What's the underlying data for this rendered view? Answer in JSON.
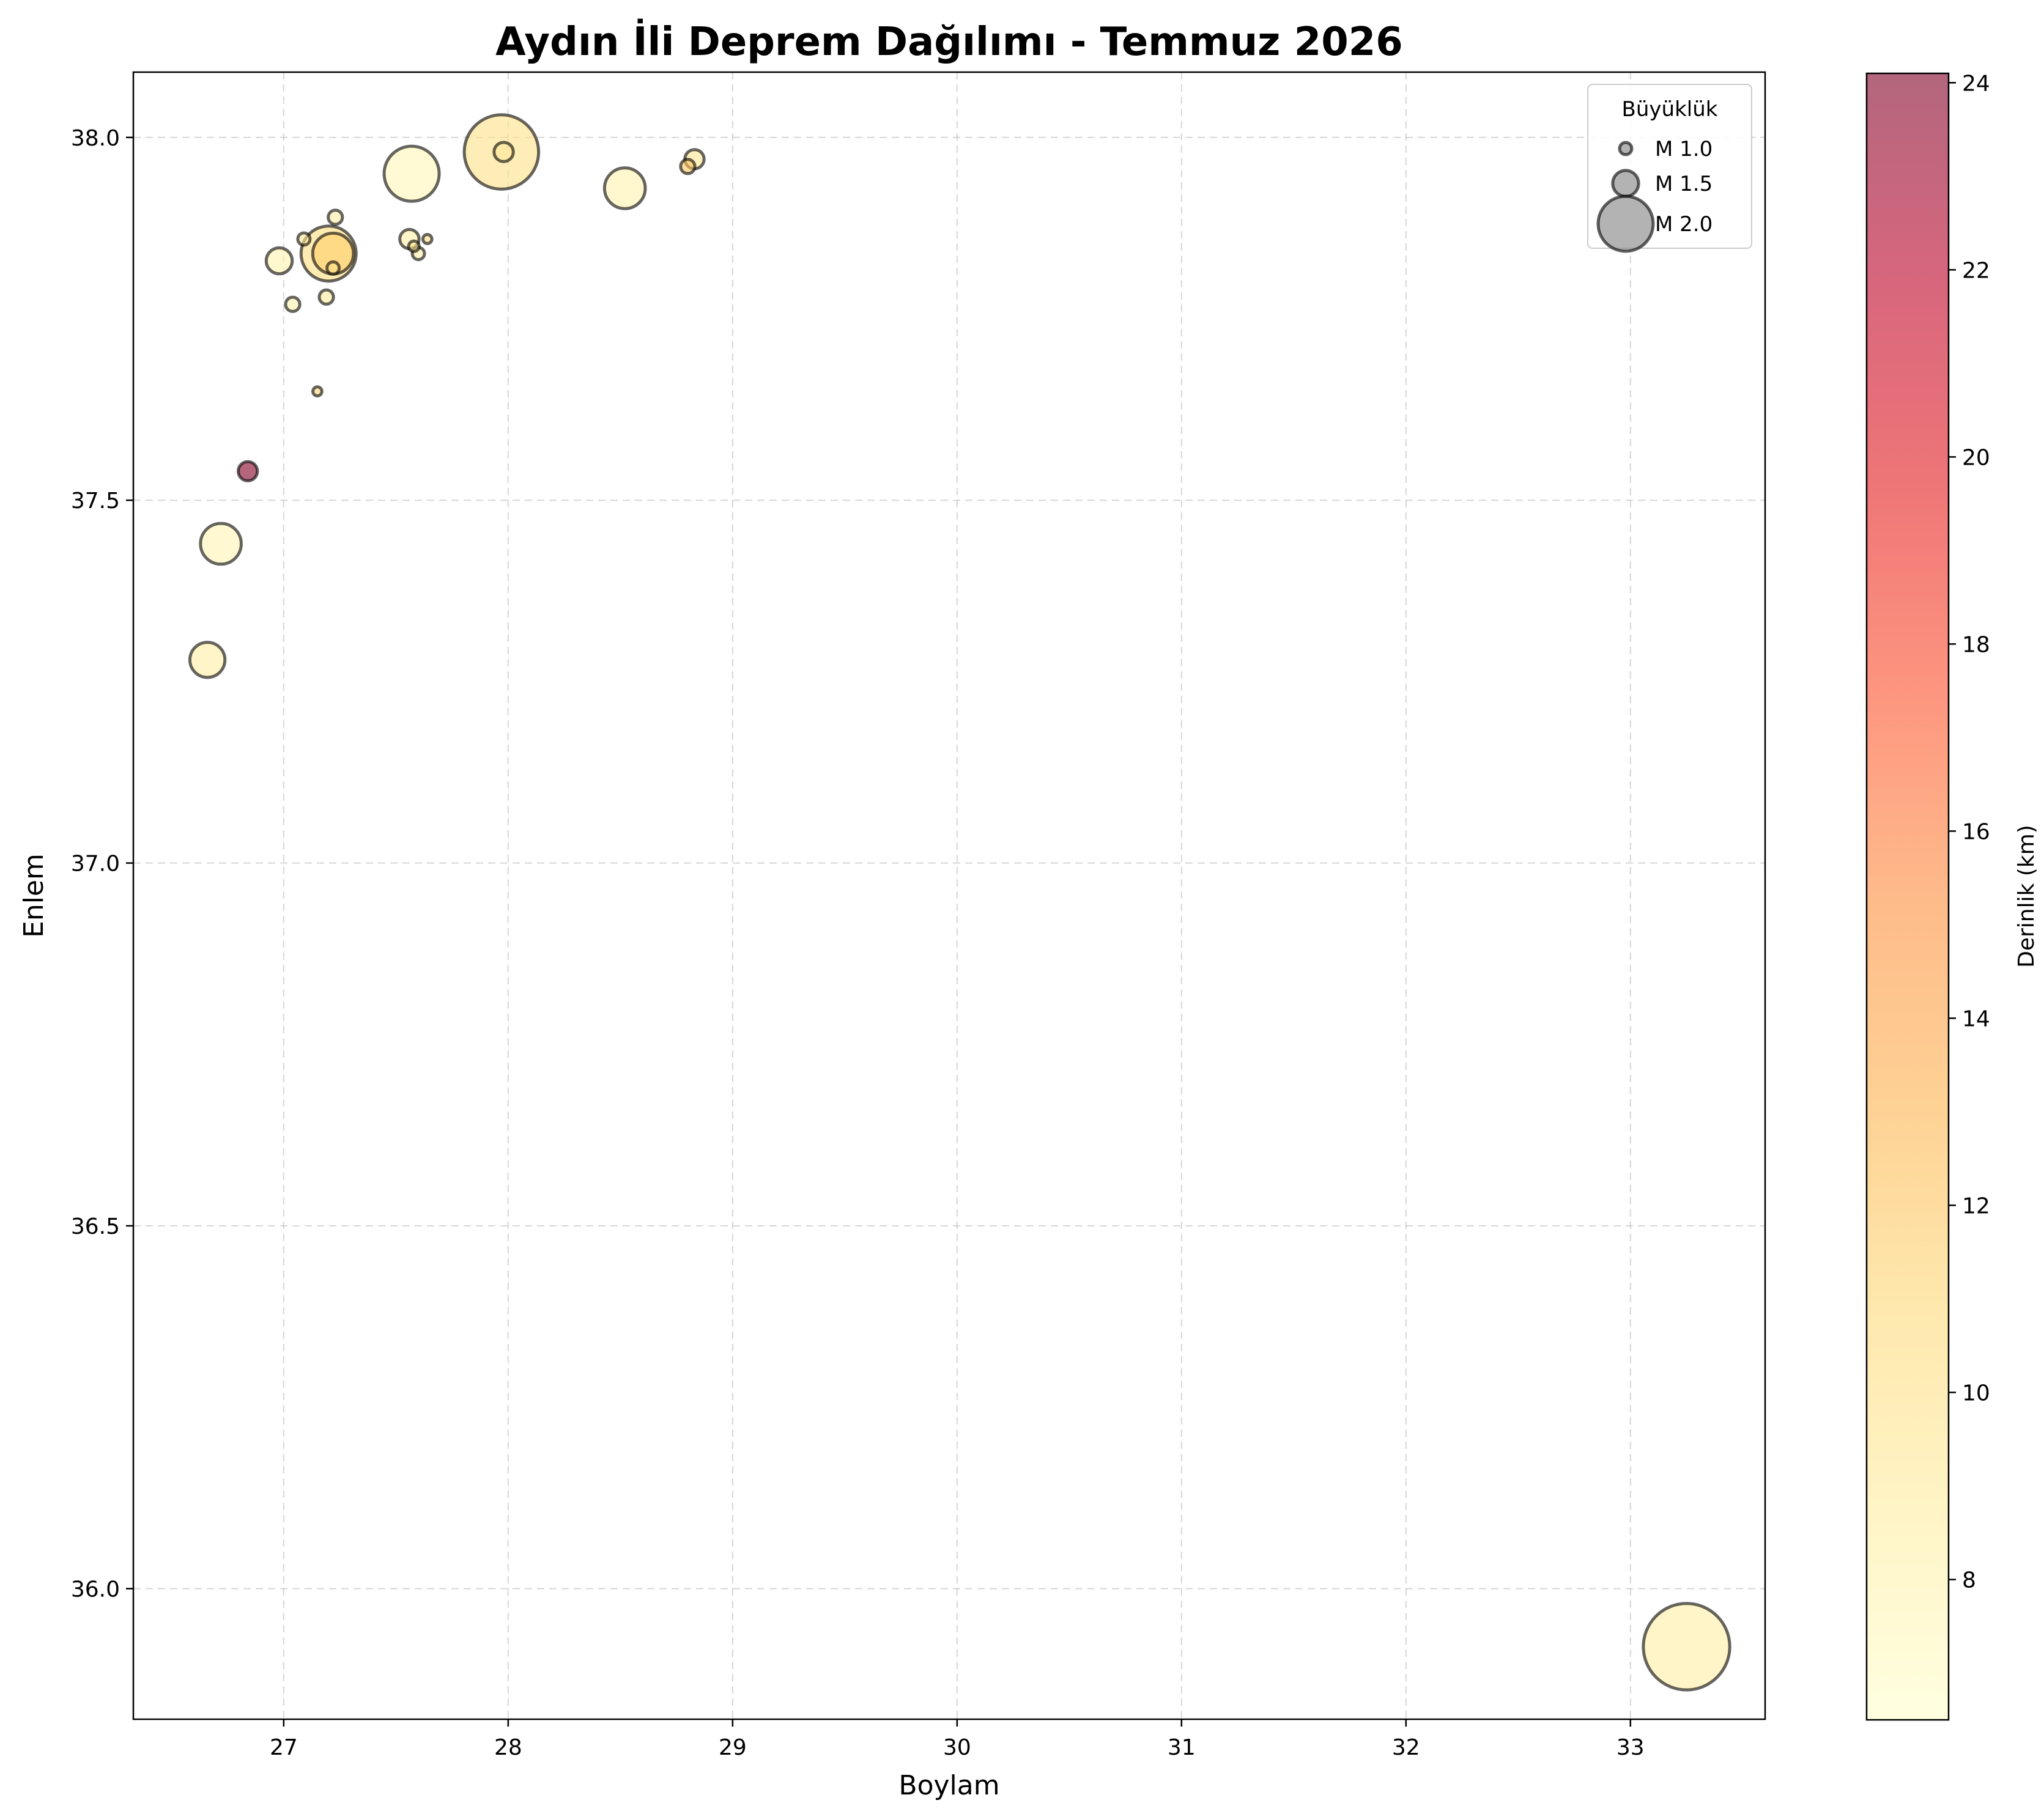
{
  "chart_data": {
    "type": "scatter",
    "title": "Aydın İli Deprem Dağılımı - Temmuz 2026",
    "xlabel": "Boylam",
    "ylabel": "Enlem",
    "xlim": [
      26.33,
      33.6
    ],
    "ylim": [
      35.82,
      38.09
    ],
    "xticks": [
      "27",
      "28",
      "29",
      "30",
      "31",
      "32",
      "33"
    ],
    "yticks": [
      "36.0",
      "36.5",
      "37.0",
      "37.5",
      "38.0"
    ],
    "grid": true,
    "grid_style": "dashed",
    "size_encodes": "magnitude",
    "color_encodes": "depth_km",
    "colormap": "YlOrRd",
    "marker_alpha": 0.6,
    "points": [
      {
        "x": 33.25,
        "y": 35.92,
        "magnitude": 2.3,
        "depth": 8.5
      },
      {
        "x": 27.97,
        "y": 37.98,
        "magnitude": 2.2,
        "depth": 10.0
      },
      {
        "x": 27.57,
        "y": 37.95,
        "magnitude": 2.0,
        "depth": 7.5
      },
      {
        "x": 27.2,
        "y": 37.84,
        "magnitude": 2.0,
        "depth": 10.5
      },
      {
        "x": 27.22,
        "y": 37.84,
        "magnitude": 1.8,
        "depth": 11.5
      },
      {
        "x": 28.52,
        "y": 37.93,
        "magnitude": 1.8,
        "depth": 8.0
      },
      {
        "x": 26.72,
        "y": 37.44,
        "magnitude": 1.8,
        "depth": 7.8
      },
      {
        "x": 26.66,
        "y": 37.28,
        "magnitude": 1.7,
        "depth": 8.5
      },
      {
        "x": 26.98,
        "y": 37.83,
        "magnitude": 1.5,
        "depth": 8.0
      },
      {
        "x": 26.84,
        "y": 37.54,
        "magnitude": 1.3,
        "depth": 24.0
      },
      {
        "x": 27.56,
        "y": 37.86,
        "magnitude": 1.3,
        "depth": 8.5
      },
      {
        "x": 28.83,
        "y": 37.97,
        "magnitude": 1.3,
        "depth": 9.5
      },
      {
        "x": 27.98,
        "y": 37.98,
        "magnitude": 1.3,
        "depth": 9.0
      },
      {
        "x": 27.23,
        "y": 37.89,
        "magnitude": 1.1,
        "depth": 8.5
      },
      {
        "x": 27.04,
        "y": 37.77,
        "magnitude": 1.1,
        "depth": 8.0
      },
      {
        "x": 27.19,
        "y": 37.78,
        "magnitude": 1.1,
        "depth": 9.0
      },
      {
        "x": 28.8,
        "y": 37.96,
        "magnitude": 1.1,
        "depth": 12.0
      },
      {
        "x": 27.6,
        "y": 37.84,
        "magnitude": 1.0,
        "depth": 8.5
      },
      {
        "x": 27.09,
        "y": 37.86,
        "magnitude": 1.0,
        "depth": 9.0
      },
      {
        "x": 27.22,
        "y": 37.82,
        "magnitude": 1.0,
        "depth": 10.0
      },
      {
        "x": 27.58,
        "y": 37.85,
        "magnitude": 0.9,
        "depth": 9.5
      },
      {
        "x": 27.64,
        "y": 37.86,
        "magnitude": 0.8,
        "depth": 10.0
      },
      {
        "x": 27.15,
        "y": 37.65,
        "magnitude": 0.8,
        "depth": 11.0
      }
    ],
    "legend": {
      "title": "Büyüklük",
      "location": "upper-right",
      "entries": [
        {
          "label": "M 1.0",
          "magnitude": 1.0
        },
        {
          "label": "M 1.5",
          "magnitude": 1.5
        },
        {
          "label": "M 2.0",
          "magnitude": 2.0
        }
      ]
    },
    "colorbar": {
      "label": "Derinlik (km)",
      "range": [
        6.5,
        24.1
      ],
      "ticks": [
        "8",
        "10",
        "12",
        "14",
        "16",
        "18",
        "20",
        "22",
        "24"
      ]
    }
  }
}
